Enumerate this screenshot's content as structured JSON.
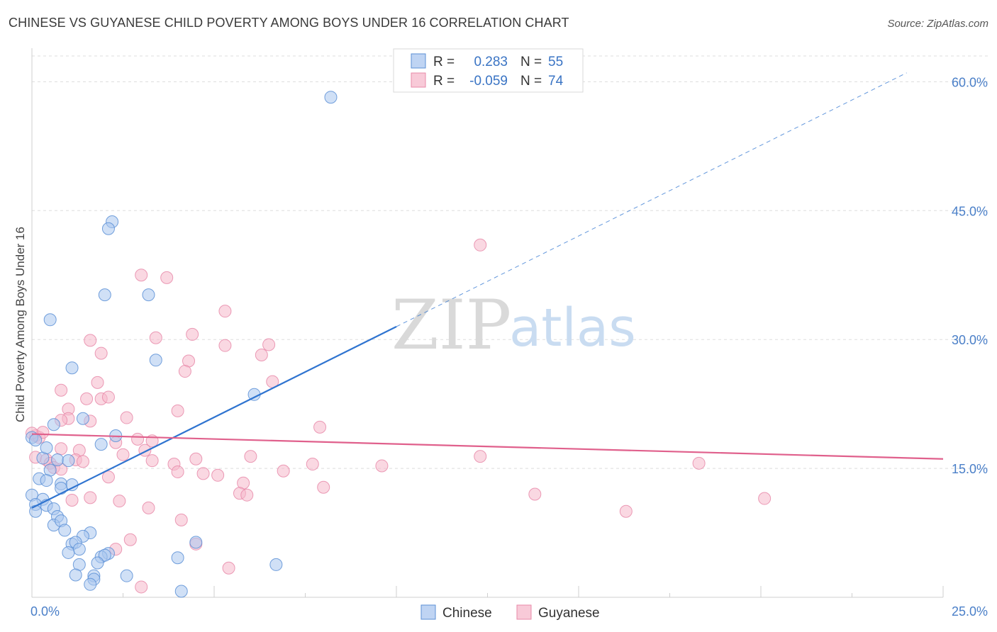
{
  "header": {
    "title": "CHINESE VS GUYANESE CHILD POVERTY AMONG BOYS UNDER 16 CORRELATION CHART",
    "source": "Source: ZipAtlas.com"
  },
  "legend": {
    "r_label": "R =",
    "n_label": "N =",
    "rows": [
      {
        "r": "0.283",
        "n": "55"
      },
      {
        "r": "-0.059",
        "n": "74"
      }
    ]
  },
  "watermark": {
    "zip": "ZIP",
    "atlas": "atlas"
  },
  "colors": {
    "chinese_fill": "#a9c6ef",
    "chinese_stroke": "#5b8fd6",
    "chinese_line": "#2f74d0",
    "guyanese_fill": "#f6b8cb",
    "guyanese_stroke": "#e88aa9",
    "guyanese_line": "#e0608c",
    "axis_text": "#4a7fc8",
    "grid": "#dddddd"
  },
  "chart_data": {
    "type": "scatter",
    "title": "CHINESE VS GUYANESE CHILD POVERTY AMONG BOYS UNDER 16 CORRELATION CHART",
    "ylabel": "Child Poverty Among Boys Under 16",
    "xlabel": "",
    "xlim": [
      0,
      25
    ],
    "ylim": [
      0,
      60
    ],
    "x_tick_labels": [
      "0.0%",
      "25.0%"
    ],
    "y_ticks": [
      15,
      30,
      45,
      60
    ],
    "y_tick_labels": [
      "15.0%",
      "30.0%",
      "45.0%",
      "60.0%"
    ],
    "grid": true,
    "legend_position": "bottom-center",
    "series": [
      {
        "name": "Chinese",
        "r": 0.283,
        "n": 55,
        "trend": {
          "x0": 0.0,
          "y0": 10.4,
          "x1": 10.0,
          "y1": 31.5,
          "dashed_to_x": 24.0
        },
        "points": [
          [
            8.2,
            58.2
          ],
          [
            2.2,
            43.7
          ],
          [
            2.1,
            42.9
          ],
          [
            2.0,
            35.2
          ],
          [
            3.2,
            35.2
          ],
          [
            0.5,
            32.3
          ],
          [
            3.4,
            27.6
          ],
          [
            1.1,
            26.7
          ],
          [
            6.1,
            23.6
          ],
          [
            0.6,
            20.1
          ],
          [
            1.4,
            20.8
          ],
          [
            2.3,
            18.8
          ],
          [
            1.9,
            17.8
          ],
          [
            0.0,
            18.6
          ],
          [
            0.1,
            18.3
          ],
          [
            0.3,
            16.2
          ],
          [
            0.4,
            17.4
          ],
          [
            0.7,
            16.0
          ],
          [
            1.0,
            15.9
          ],
          [
            0.5,
            14.8
          ],
          [
            0.2,
            13.8
          ],
          [
            0.4,
            13.6
          ],
          [
            0.8,
            13.2
          ],
          [
            1.1,
            13.1
          ],
          [
            0.8,
            12.7
          ],
          [
            0.0,
            11.9
          ],
          [
            0.3,
            11.4
          ],
          [
            0.1,
            10.8
          ],
          [
            0.4,
            10.7
          ],
          [
            0.6,
            10.3
          ],
          [
            0.1,
            10.0
          ],
          [
            0.7,
            9.4
          ],
          [
            0.6,
            8.4
          ],
          [
            0.8,
            8.9
          ],
          [
            0.9,
            7.8
          ],
          [
            1.6,
            7.5
          ],
          [
            1.4,
            7.1
          ],
          [
            1.1,
            6.2
          ],
          [
            1.2,
            6.4
          ],
          [
            4.5,
            6.4
          ],
          [
            1.3,
            5.6
          ],
          [
            1.0,
            5.2
          ],
          [
            2.1,
            5.1
          ],
          [
            1.9,
            4.7
          ],
          [
            2.0,
            4.9
          ],
          [
            4.0,
            4.6
          ],
          [
            1.8,
            4.0
          ],
          [
            1.3,
            3.8
          ],
          [
            6.7,
            3.8
          ],
          [
            1.2,
            2.6
          ],
          [
            1.7,
            2.5
          ],
          [
            2.6,
            2.5
          ],
          [
            1.7,
            2.1
          ],
          [
            1.6,
            1.5
          ],
          [
            4.1,
            0.7
          ]
        ]
      },
      {
        "name": "Guyanese",
        "r": -0.059,
        "n": 74,
        "trend": {
          "x0": 0.0,
          "y0": 19.0,
          "x1": 25.0,
          "y1": 16.1
        },
        "points": [
          [
            12.3,
            41.0
          ],
          [
            3.0,
            37.5
          ],
          [
            3.7,
            37.2
          ],
          [
            5.3,
            33.3
          ],
          [
            1.6,
            29.9
          ],
          [
            3.4,
            30.2
          ],
          [
            4.4,
            30.6
          ],
          [
            5.3,
            29.3
          ],
          [
            6.5,
            29.4
          ],
          [
            1.9,
            28.4
          ],
          [
            4.3,
            27.5
          ],
          [
            6.3,
            28.2
          ],
          [
            4.2,
            26.3
          ],
          [
            1.8,
            25.0
          ],
          [
            6.6,
            25.1
          ],
          [
            0.8,
            24.1
          ],
          [
            1.5,
            23.1
          ],
          [
            1.9,
            23.1
          ],
          [
            2.1,
            23.3
          ],
          [
            1.0,
            21.9
          ],
          [
            4.0,
            21.7
          ],
          [
            1.0,
            20.8
          ],
          [
            1.6,
            20.5
          ],
          [
            2.6,
            20.9
          ],
          [
            0.8,
            20.6
          ],
          [
            7.9,
            19.8
          ],
          [
            0.1,
            18.8
          ],
          [
            0.2,
            18.6
          ],
          [
            2.9,
            18.4
          ],
          [
            3.3,
            18.2
          ],
          [
            2.3,
            18.0
          ],
          [
            0.8,
            17.3
          ],
          [
            1.3,
            17.1
          ],
          [
            3.1,
            17.1
          ],
          [
            2.5,
            16.6
          ],
          [
            0.1,
            16.3
          ],
          [
            0.4,
            16.0
          ],
          [
            1.2,
            16.0
          ],
          [
            1.4,
            15.8
          ],
          [
            3.3,
            15.9
          ],
          [
            4.5,
            16.1
          ],
          [
            0.5,
            15.6
          ],
          [
            12.3,
            16.4
          ],
          [
            6.0,
            16.4
          ],
          [
            7.7,
            15.5
          ],
          [
            9.6,
            15.3
          ],
          [
            18.3,
            15.6
          ],
          [
            0.6,
            15.1
          ],
          [
            0.8,
            14.9
          ],
          [
            3.9,
            15.5
          ],
          [
            4.0,
            14.6
          ],
          [
            4.7,
            14.4
          ],
          [
            5.1,
            14.2
          ],
          [
            6.9,
            14.7
          ],
          [
            2.1,
            14.0
          ],
          [
            5.8,
            13.3
          ],
          [
            8.0,
            12.8
          ],
          [
            5.7,
            12.1
          ],
          [
            5.9,
            11.9
          ],
          [
            13.8,
            12.0
          ],
          [
            1.6,
            11.6
          ],
          [
            2.4,
            11.2
          ],
          [
            20.1,
            11.5
          ],
          [
            1.1,
            11.3
          ],
          [
            3.2,
            10.4
          ],
          [
            16.3,
            10.0
          ],
          [
            4.1,
            9.0
          ],
          [
            2.7,
            6.7
          ],
          [
            4.5,
            6.2
          ],
          [
            2.3,
            5.6
          ],
          [
            5.4,
            3.4
          ],
          [
            3.0,
            1.2
          ],
          [
            0.3,
            19.2
          ],
          [
            0.0,
            19.1
          ]
        ]
      }
    ]
  }
}
